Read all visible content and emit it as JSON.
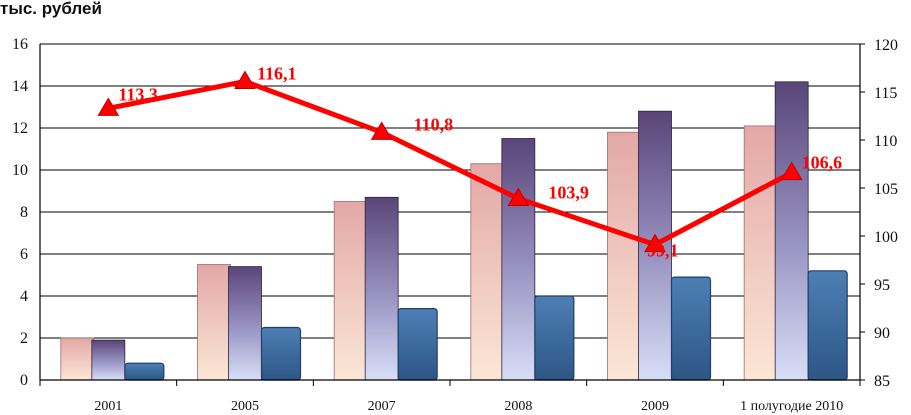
{
  "unit_label": "тыс. рублей",
  "chart_data": {
    "type": "bar",
    "categories": [
      "2001",
      "2005",
      "2007",
      "2008",
      "2009",
      "1 полугодие 2010"
    ],
    "series": [
      {
        "type": "bar",
        "axis": "left",
        "values": [
          2.0,
          5.5,
          8.5,
          10.3,
          11.8,
          12.1
        ],
        "color": "#e6b7b5"
      },
      {
        "type": "bar",
        "axis": "left",
        "values": [
          1.9,
          5.4,
          8.7,
          11.5,
          12.8,
          14.2
        ],
        "color": "#6e5a8f"
      },
      {
        "type": "bar",
        "axis": "left",
        "values": [
          0.8,
          2.5,
          3.4,
          4.0,
          4.9,
          5.2
        ],
        "color": "#3e6a9c"
      },
      {
        "type": "line",
        "axis": "right",
        "values": [
          113.3,
          116.1,
          110.8,
          103.9,
          99.1,
          106.6
        ],
        "labels": [
          "113,3",
          "116,1",
          "110,8",
          "103,9",
          "99,1",
          "106,6"
        ],
        "color": "#ff0000"
      }
    ],
    "y_left": {
      "min": 0,
      "max": 16,
      "ticks": [
        "0",
        "2",
        "4",
        "6",
        "8",
        "10",
        "12",
        "14",
        "16"
      ]
    },
    "y_right": {
      "min": 85,
      "max": 120,
      "ticks": [
        "85",
        "90",
        "95",
        "100",
        "105",
        "110",
        "115",
        "120"
      ]
    },
    "grid": true,
    "legend": "none"
  }
}
